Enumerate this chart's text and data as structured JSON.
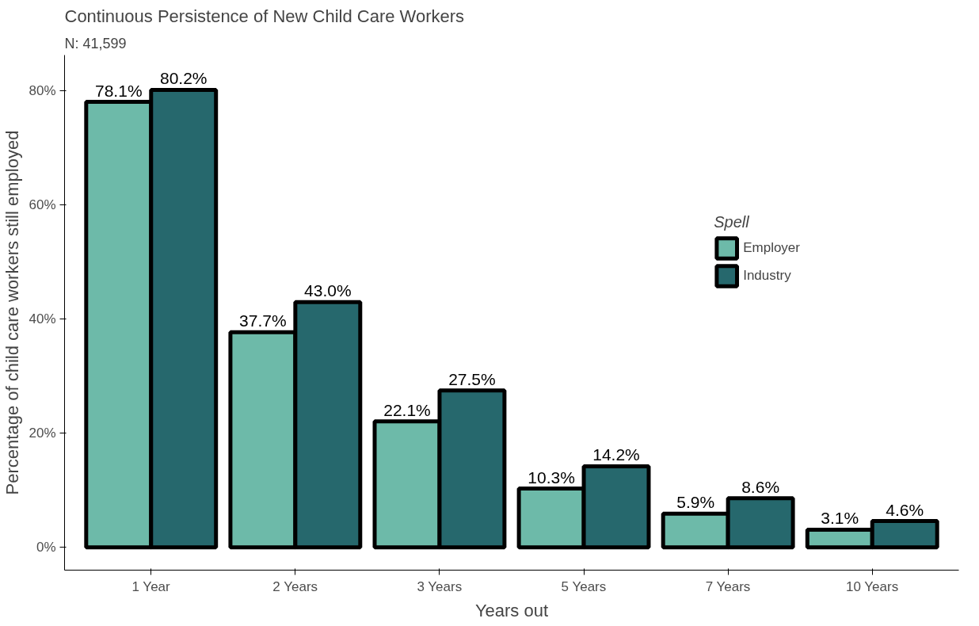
{
  "chart_data": {
    "type": "bar",
    "title": "Continuous Persistence of New Child Care Workers",
    "subtitle": "N: 41,599",
    "xlabel": "Years out",
    "ylabel": "Percentage of child care workers still employed",
    "legend_title": "Spell",
    "categories": [
      "1 Year",
      "2 Years",
      "3 Years",
      "5 Years",
      "7 Years",
      "10 Years"
    ],
    "series": [
      {
        "name": "Employer",
        "color": "#6dbaa9",
        "values": [
          78.1,
          37.7,
          22.1,
          10.3,
          5.9,
          3.1
        ],
        "value_labels": [
          "78.1%",
          "37.7%",
          "22.1%",
          "10.3%",
          "5.9%",
          "3.1%"
        ]
      },
      {
        "name": "Industry",
        "color": "#26686d",
        "values": [
          80.2,
          43.0,
          27.5,
          14.2,
          8.6,
          4.6
        ],
        "value_labels": [
          "80.2%",
          "43.0%",
          "27.5%",
          "14.2%",
          "8.6%",
          "4.6%"
        ]
      }
    ],
    "ylim": [
      -4,
      86.3
    ],
    "yticks": [
      {
        "value": 0,
        "label": "0%"
      },
      {
        "value": 20,
        "label": "20%"
      },
      {
        "value": 40,
        "label": "40%"
      },
      {
        "value": 60,
        "label": "60%"
      },
      {
        "value": 80,
        "label": "80%"
      }
    ],
    "grid": false,
    "legend": "top right"
  }
}
